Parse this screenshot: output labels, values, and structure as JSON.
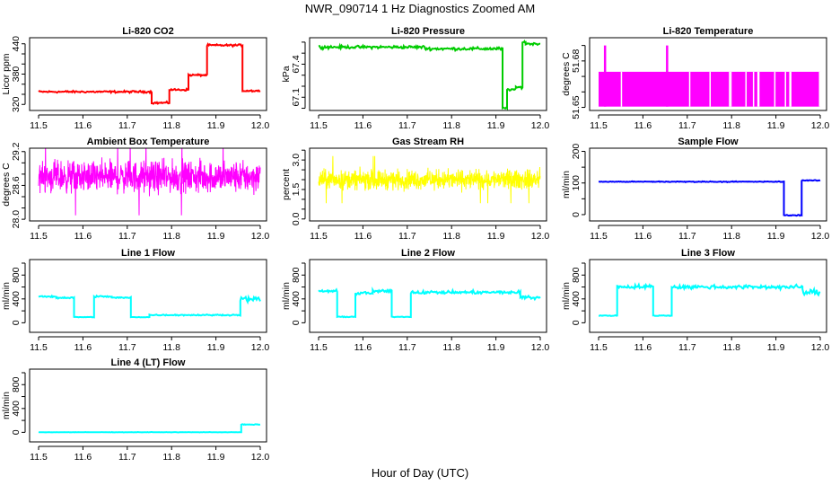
{
  "chart_data": {
    "title": "NWR_090714  1 Hz Diagnostics Zoomed AM",
    "xlabel": "Hour of Day (UTC)",
    "panels": [
      {
        "title": "Li-820 CO2",
        "type": "line",
        "ylabel": "Licor ppm",
        "color": "#ff0000",
        "xlim": [
          11.5,
          12.0
        ],
        "xticks": [
          "11.5",
          "11.6",
          "11.7",
          "11.8",
          "11.9",
          "12.0"
        ],
        "ylim": [
          308,
          452
        ],
        "yticks": [
          320,
          340,
          360,
          380,
          400,
          420,
          440
        ],
        "ytick_labels": [
          "320",
          "380",
          "440"
        ],
        "segments": [
          [
            11.5,
            11.755,
            345,
            1.2
          ],
          [
            11.755,
            11.795,
            323,
            1.2
          ],
          [
            11.795,
            11.838,
            349,
            1.2
          ],
          [
            11.838,
            11.88,
            378,
            1.2
          ],
          [
            11.88,
            11.96,
            437,
            1.2
          ],
          [
            11.96,
            12.0,
            347,
            1.2
          ]
        ]
      },
      {
        "title": "Li-820 Pressure",
        "type": "line",
        "ylabel": "kPa",
        "color": "#00cc00",
        "xlim": [
          11.5,
          12.0
        ],
        "xticks": [
          "11.5",
          "11.6",
          "11.7",
          "11.8",
          "11.9",
          "12.0"
        ],
        "ylim": [
          66.98,
          67.64
        ],
        "yticks": [
          67.0,
          67.1,
          67.2,
          67.3,
          67.4,
          67.5,
          67.6
        ],
        "ytick_labels": [
          "67.1",
          "67.4"
        ],
        "segments": [
          [
            11.5,
            11.74,
            67.555,
            0.008
          ],
          [
            11.74,
            11.915,
            67.54,
            0.008
          ],
          [
            11.915,
            11.925,
            67.0,
            0.005
          ],
          [
            11.925,
            11.945,
            67.17,
            0.006
          ],
          [
            11.945,
            11.96,
            67.19,
            0.006
          ],
          [
            11.96,
            11.967,
            67.6,
            0.006
          ],
          [
            11.967,
            12.0,
            67.585,
            0.006
          ]
        ]
      },
      {
        "title": "Li-820 Temperature",
        "type": "band",
        "ylabel": "degrees C",
        "color": "#ff00ff",
        "xlim": [
          11.5,
          12.0
        ],
        "xticks": [
          "11.5",
          "11.6",
          "11.7",
          "11.8",
          "11.9",
          "12.0"
        ],
        "ylim": [
          51.648,
          51.695
        ],
        "yticks": [
          51.65,
          51.66,
          51.67,
          51.68,
          51.69
        ],
        "ytick_labels": [
          "51.65",
          "51.68"
        ],
        "band": [
          51.6505,
          51.673
        ],
        "spikes": [
          11.512,
          11.652
        ],
        "spike_value": 51.69,
        "gaps": [
          11.55,
          11.704,
          11.75,
          11.794,
          11.797,
          11.831,
          11.848,
          11.858,
          11.86,
          11.896,
          11.92,
          11.93,
          11.932,
          11.997
        ]
      },
      {
        "title": "Ambient Box Temperature",
        "type": "noise",
        "ylabel": "degrees C",
        "color": "#ff00ff",
        "xlim": [
          11.5,
          12.0
        ],
        "xticks": [
          "11.5",
          "11.6",
          "11.7",
          "11.8",
          "11.9",
          "12.0"
        ],
        "ylim": [
          27.97,
          29.26
        ],
        "yticks": [
          28.0,
          28.2,
          28.4,
          28.6,
          28.8,
          29.0,
          29.2
        ],
        "ytick_labels": [
          "28.0",
          "28.6",
          "29.2"
        ],
        "segments": [
          [
            11.5,
            12.0,
            28.75,
            0.17
          ]
        ]
      },
      {
        "title": "Gas Stream RH",
        "type": "noise",
        "ylabel": "percent",
        "color": "#ffff00",
        "xlim": [
          11.5,
          12.0
        ],
        "xticks": [
          "11.5",
          "11.6",
          "11.7",
          "11.8",
          "11.9",
          "12.0"
        ],
        "ylim": [
          -0.1,
          3.6
        ],
        "yticks": [
          0.0,
          0.5,
          1.0,
          1.5,
          2.0,
          2.5,
          3.0,
          3.5
        ],
        "ytick_labels": [
          "0.0",
          "1.5",
          "3.0"
        ],
        "segments": [
          [
            11.5,
            12.0,
            2.0,
            0.3
          ]
        ]
      },
      {
        "title": "Sample Flow",
        "type": "line",
        "ylabel": "ml/min",
        "color": "#0000ff",
        "xlim": [
          11.5,
          12.0
        ],
        "xticks": [
          "11.5",
          "11.6",
          "11.7",
          "11.8",
          "11.9",
          "12.0"
        ],
        "ylim": [
          -20,
          210
        ],
        "yticks": [
          0,
          50,
          100,
          150,
          200
        ],
        "ytick_labels": [
          "0",
          "100",
          "200"
        ],
        "segments": [
          [
            11.5,
            11.918,
            104,
            0.8
          ],
          [
            11.918,
            11.958,
            -2,
            0.8
          ],
          [
            11.958,
            12.0,
            108,
            0.8
          ]
        ]
      },
      {
        "title": "Line 1 Flow",
        "type": "line",
        "ylabel": "ml/min",
        "color": "#00ffff",
        "xlim": [
          11.5,
          12.0
        ],
        "xticks": [
          "11.5",
          "11.6",
          "11.7",
          "11.8",
          "11.9",
          "12.0"
        ],
        "ylim": [
          -160,
          1060
        ],
        "yticks": [
          0,
          200,
          400,
          600,
          800,
          1000
        ],
        "ytick_labels": [
          "0",
          "400",
          "800"
        ],
        "segments": [
          [
            11.5,
            11.54,
            440,
            8
          ],
          [
            11.54,
            11.58,
            420,
            8
          ],
          [
            11.58,
            11.625,
            95,
            3
          ],
          [
            11.625,
            11.665,
            440,
            8
          ],
          [
            11.665,
            11.708,
            420,
            8
          ],
          [
            11.708,
            11.75,
            95,
            3
          ],
          [
            11.75,
            11.955,
            130,
            6
          ],
          [
            11.955,
            12.0,
            395,
            25
          ]
        ]
      },
      {
        "title": "Line 2 Flow",
        "type": "line",
        "ylabel": "ml/min",
        "color": "#00ffff",
        "xlim": [
          11.5,
          12.0
        ],
        "xticks": [
          "11.5",
          "11.6",
          "11.7",
          "11.8",
          "11.9",
          "12.0"
        ],
        "ylim": [
          -160,
          1060
        ],
        "yticks": [
          0,
          200,
          400,
          600,
          800,
          1000
        ],
        "ytick_labels": [
          "0",
          "400",
          "800"
        ],
        "segments": [
          [
            11.5,
            11.542,
            530,
            15
          ],
          [
            11.542,
            11.583,
            100,
            4
          ],
          [
            11.583,
            11.622,
            495,
            18
          ],
          [
            11.622,
            11.665,
            530,
            12
          ],
          [
            11.665,
            11.708,
            100,
            4
          ],
          [
            11.708,
            11.955,
            510,
            15
          ],
          [
            11.955,
            12.0,
            425,
            25
          ]
        ]
      },
      {
        "title": "Line 3 Flow",
        "type": "line",
        "ylabel": "ml/min",
        "color": "#00ffff",
        "xlim": [
          11.5,
          12.0
        ],
        "xticks": [
          "11.5",
          "11.6",
          "11.7",
          "11.8",
          "11.9",
          "12.0"
        ],
        "ylim": [
          -160,
          1060
        ],
        "yticks": [
          0,
          200,
          400,
          600,
          800,
          1000
        ],
        "ytick_labels": [
          "0",
          "400",
          "800"
        ],
        "segments": [
          [
            11.5,
            11.542,
            120,
            4
          ],
          [
            11.542,
            11.623,
            605,
            20
          ],
          [
            11.623,
            11.665,
            120,
            4
          ],
          [
            11.665,
            11.96,
            600,
            20
          ],
          [
            11.96,
            12.0,
            510,
            30
          ]
        ]
      },
      {
        "title": "Line 4 (LT) Flow",
        "type": "line",
        "ylabel": "ml/min",
        "color": "#00ffff",
        "xlim": [
          11.5,
          12.0
        ],
        "xticks": [
          "11.5",
          "11.6",
          "11.7",
          "11.8",
          "11.9",
          "12.0"
        ],
        "ylim": [
          -160,
          1060
        ],
        "yticks": [
          0,
          200,
          400,
          600,
          800,
          1000
        ],
        "ytick_labels": [
          "0",
          "400",
          "800"
        ],
        "segments": [
          [
            11.5,
            11.957,
            2,
            2
          ],
          [
            11.957,
            12.0,
            130,
            4
          ]
        ]
      }
    ]
  }
}
